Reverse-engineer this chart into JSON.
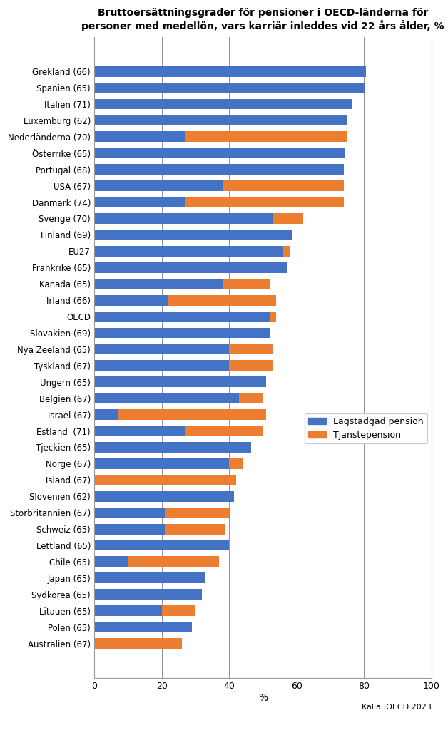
{
  "title": "Bruttoersättningsgrader för pensioner i OECD-länderna för\npersoner med medellön, vars karriär inleddes vid 22 års ålder, %",
  "countries": [
    "Grekland (66)",
    "Spanien (65)",
    "Italien (71)",
    "Luxemburg (62)",
    "Nederländerna (70)",
    "Österrike (65)",
    "Portugal (68)",
    "USA (67)",
    "Danmark (74)",
    "Sverige (70)",
    "Finland (69)",
    "EU27",
    "Frankrike (65)",
    "Kanada (65)",
    "Irland (66)",
    "OECD",
    "Slovakien (69)",
    "Nya Zeeland (65)",
    "Tyskland (67)",
    "Ungern (65)",
    "Belgien (67)",
    "Israel (67)",
    "Estland  (71)",
    "Tjeckien (65)",
    "Norge (67)",
    "Island (67)",
    "Slovenien (62)",
    "Storbritannien (67)",
    "Schweiz (65)",
    "Lettland (65)",
    "Chile (65)",
    "Japan (65)",
    "Sydkorea (65)",
    "Litauen (65)",
    "Polen (65)",
    "Australien (67)"
  ],
  "lagstadgad": [
    80.5,
    80.3,
    76.5,
    75.0,
    27.0,
    74.5,
    74.0,
    38.0,
    27.0,
    53.0,
    58.5,
    56.0,
    57.0,
    38.0,
    22.0,
    52.0,
    52.0,
    40.0,
    40.0,
    51.0,
    43.0,
    7.0,
    27.0,
    46.5,
    40.0,
    0.0,
    41.5,
    21.0,
    21.0,
    40.0,
    10.0,
    33.0,
    32.0,
    20.0,
    29.0,
    0.0
  ],
  "tjanste": [
    0.0,
    0.0,
    0.0,
    0.0,
    48.0,
    0.0,
    0.0,
    36.0,
    47.0,
    9.0,
    0.0,
    2.0,
    0.0,
    14.0,
    32.0,
    2.0,
    0.0,
    13.0,
    13.0,
    0.0,
    7.0,
    44.0,
    23.0,
    0.0,
    4.0,
    42.0,
    0.0,
    19.0,
    18.0,
    0.0,
    27.0,
    0.0,
    0.0,
    10.0,
    0.0,
    26.0
  ],
  "color_lagstadgad": "#4472C4",
  "color_tjanste": "#ED7D31",
  "xlabel": "%",
  "xlim": [
    0,
    100
  ],
  "xticks": [
    0,
    20,
    40,
    60,
    80,
    100
  ],
  "source": "Källa: OECD 2023",
  "legend_lagstadgad": "Lagstadgad pension",
  "legend_tjanste": "Tjänstepension",
  "bg_color": "#ffffff"
}
